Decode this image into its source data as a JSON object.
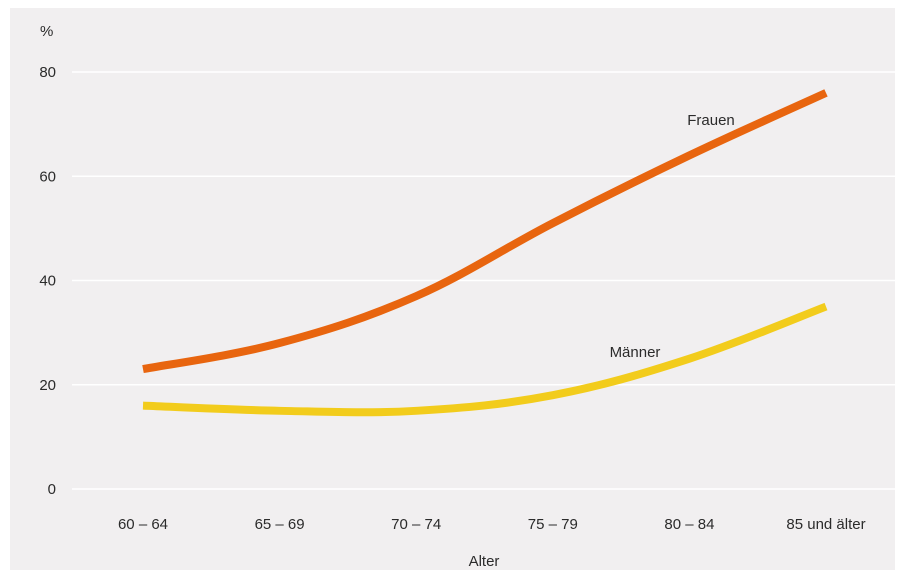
{
  "chart_data": {
    "type": "line",
    "title": "",
    "ylabel": "%",
    "xlabel": "Alter",
    "ylim": [
      0,
      80
    ],
    "yticks": [
      0,
      20,
      40,
      60,
      80
    ],
    "grid": true,
    "categories": [
      "60 – 64",
      "65 – 69",
      "70 – 74",
      "75 – 79",
      "80 – 84",
      "85 und älter"
    ],
    "series": [
      {
        "name": "Frauen",
        "color": "#e8650f",
        "values": [
          23,
          28,
          37,
          51,
          64,
          76
        ]
      },
      {
        "name": "Männer",
        "color": "#f2cc1c",
        "values": [
          16,
          15,
          15,
          18,
          25,
          35
        ]
      }
    ]
  }
}
